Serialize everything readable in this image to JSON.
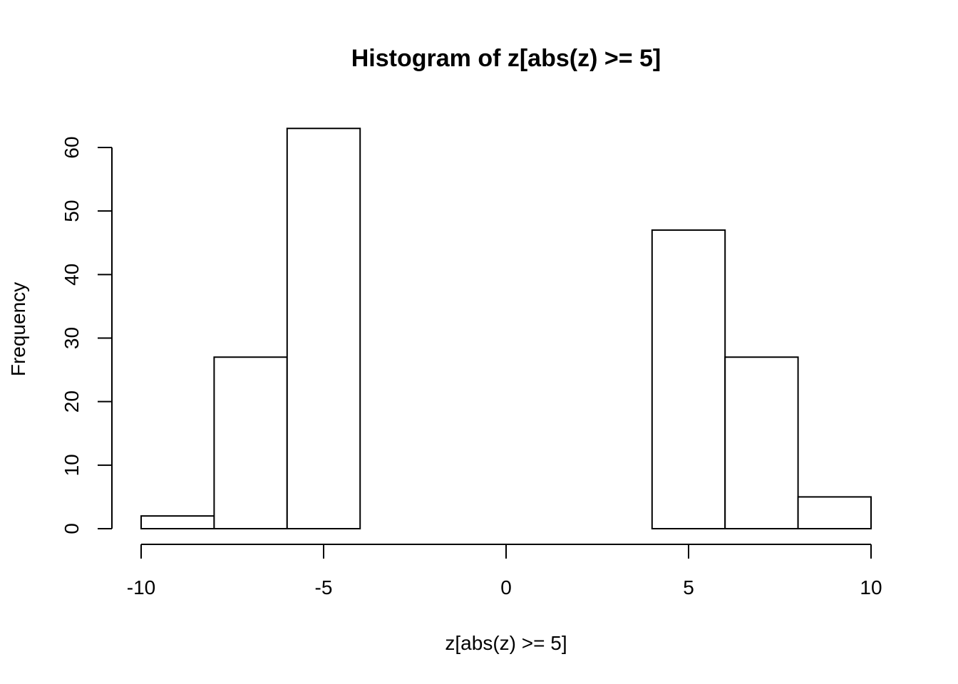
{
  "chart_data": {
    "type": "bar",
    "title": "Histogram of z[abs(z) >= 5]",
    "xlabel": "z[abs(z) >= 5]",
    "ylabel": "Frequency",
    "bins": [
      {
        "from": -10,
        "to": -8,
        "count": 2
      },
      {
        "from": -8,
        "to": -6,
        "count": 27
      },
      {
        "from": -6,
        "to": -4,
        "count": 63
      },
      {
        "from": -4,
        "to": -2,
        "count": 0
      },
      {
        "from": -2,
        "to": 0,
        "count": 0
      },
      {
        "from": 0,
        "to": 2,
        "count": 0
      },
      {
        "from": 2,
        "to": 4,
        "count": 0
      },
      {
        "from": 4,
        "to": 6,
        "count": 47
      },
      {
        "from": 6,
        "to": 8,
        "count": 27
      },
      {
        "from": 8,
        "to": 10,
        "count": 5
      }
    ],
    "xlim": [
      -10,
      10
    ],
    "ylim": [
      0,
      63
    ],
    "xticks": [
      -10,
      -5,
      0,
      5,
      10
    ],
    "yticks": [
      0,
      10,
      20,
      30,
      40,
      50,
      60
    ],
    "grid": false
  }
}
